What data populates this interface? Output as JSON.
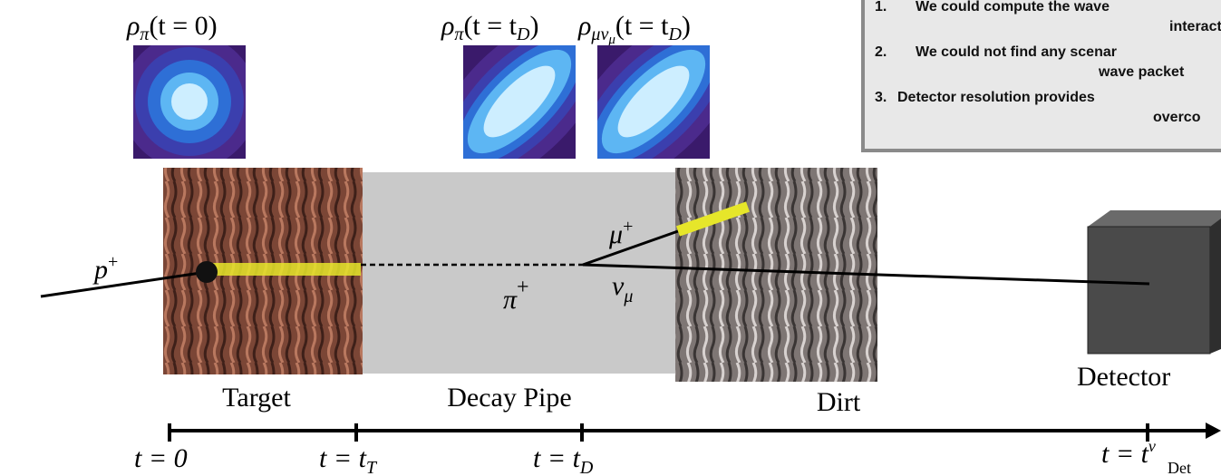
{
  "densities": [
    {
      "symbol": "ρ",
      "sub": "π",
      "arg": "(t = 0)"
    },
    {
      "symbol": "ρ",
      "sub": "π",
      "arg": "(t = t",
      "argsub": "D",
      "close": ")"
    },
    {
      "symbol": "ρ",
      "sub": "μν",
      "subsub": "μ",
      "arg": "(t = t",
      "argsub": "D",
      "close": ")"
    }
  ],
  "notes": [
    {
      "number": "1.",
      "lines": [
        "We could compute the wave",
        "interact"
      ]
    },
    {
      "number": "2.",
      "lines": [
        "We could not find any scenar",
        "wave packet"
      ]
    },
    {
      "number": "3.",
      "lines": [
        "Detector resolution provides",
        "overco"
      ]
    }
  ],
  "particles": {
    "proton": {
      "base": "p",
      "sup": "+"
    },
    "muon": {
      "base": "μ",
      "sup": "+"
    },
    "neutrino": {
      "base": "ν",
      "sub": "μ"
    },
    "pion": {
      "base": "π",
      "sup": "+"
    }
  },
  "regions": [
    "Target",
    "Decay Pipe",
    "Dirt",
    "Detector"
  ],
  "timeline": [
    {
      "text": "t = 0"
    },
    {
      "text": "t = t",
      "sub": "T"
    },
    {
      "text": "t = t",
      "sub": "D"
    },
    {
      "text": "t = t",
      "sup": "ν",
      "sub": "Det"
    }
  ]
}
